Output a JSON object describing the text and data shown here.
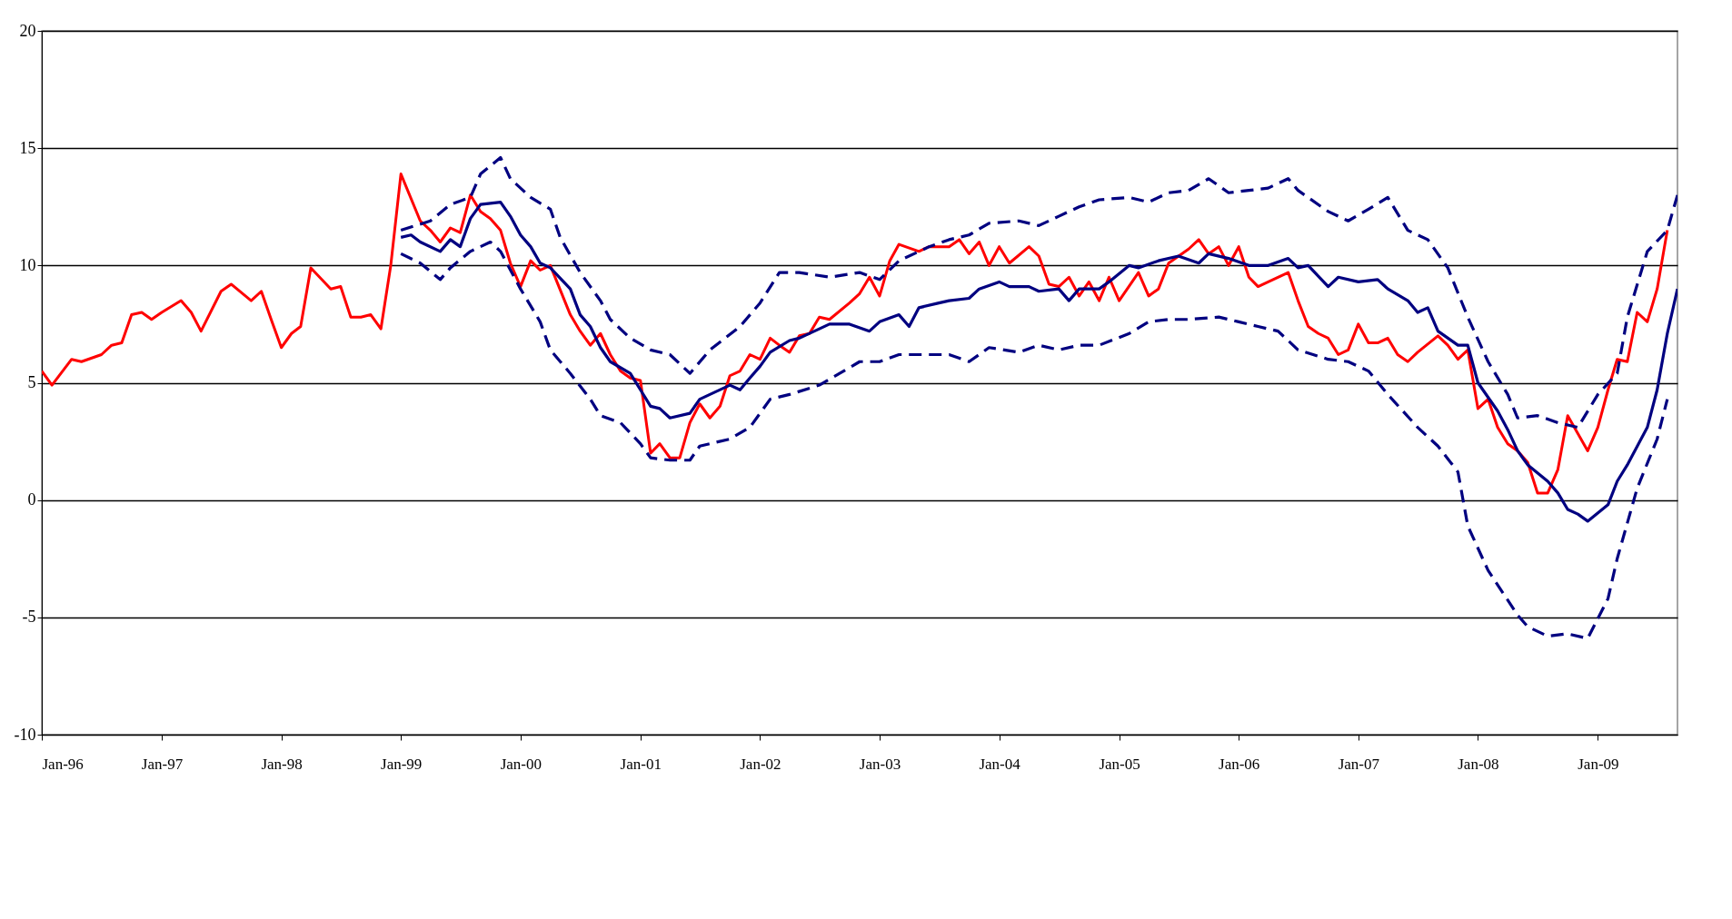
{
  "chart_data": {
    "type": "line",
    "xlim": [
      "1996-01",
      "2009-09"
    ],
    "ylim": [
      -10,
      20
    ],
    "xticks": [
      {
        "value": "1996-01",
        "label": "Jan-96"
      },
      {
        "value": "1997-01",
        "label": "Jan-97"
      },
      {
        "value": "1998-01",
        "label": "Jan-98"
      },
      {
        "value": "1999-01",
        "label": "Jan-99"
      },
      {
        "value": "2000-01",
        "label": "Jan-00"
      },
      {
        "value": "2001-01",
        "label": "Jan-01"
      },
      {
        "value": "2002-01",
        "label": "Jan-02"
      },
      {
        "value": "2003-01",
        "label": "Jan-03"
      },
      {
        "value": "2004-01",
        "label": "Jan-04"
      },
      {
        "value": "2005-01",
        "label": "Jan-05"
      },
      {
        "value": "2006-01",
        "label": "Jan-06"
      },
      {
        "value": "2007-01",
        "label": "Jan-07"
      },
      {
        "value": "2008-01",
        "label": "Jan-08"
      },
      {
        "value": "2009-01",
        "label": "Jan-09"
      }
    ],
    "yticks": [
      -10,
      -5,
      0,
      5,
      10,
      15,
      20
    ],
    "grid": "y",
    "marker": "none",
    "series": [
      {
        "color": "#ff0000",
        "line_style": "solid",
        "x": [
          "1996-01",
          "1996-02",
          "1996-04",
          "1996-05",
          "1996-07",
          "1996-08",
          "1996-09",
          "1996-10",
          "1996-11",
          "1996-12",
          "1997-01",
          "1997-03",
          "1997-04",
          "1997-05",
          "1997-07",
          "1997-08",
          "1997-10",
          "1997-11",
          "1997-12",
          "1998-01",
          "1998-02",
          "1998-03",
          "1998-04",
          "1998-06",
          "1998-07",
          "1998-08",
          "1998-09",
          "1998-10",
          "1998-11",
          "1998-12",
          "1999-01",
          "1999-03",
          "1999-04",
          "1999-05",
          "1999-06",
          "1999-07",
          "1999-08",
          "1999-09",
          "1999-10",
          "1999-11",
          "1999-12",
          "2000-01",
          "2000-02",
          "2000-03",
          "2000-04",
          "2000-06",
          "2000-07",
          "2000-08",
          "2000-09",
          "2000-10",
          "2000-11",
          "2000-12",
          "2001-01",
          "2001-02",
          "2001-03",
          "2001-04",
          "2001-05",
          "2001-06",
          "2001-07",
          "2001-08",
          "2001-09",
          "2001-10",
          "2001-11",
          "2001-12",
          "2002-01",
          "2002-02",
          "2002-03",
          "2002-04",
          "2002-05",
          "2002-06",
          "2002-07",
          "2002-08",
          "2002-10",
          "2002-11",
          "2002-12",
          "2003-01",
          "2003-02",
          "2003-03",
          "2003-05",
          "2003-06",
          "2003-08",
          "2003-09",
          "2003-10",
          "2003-11",
          "2003-12",
          "2004-01",
          "2004-02",
          "2004-04",
          "2004-05",
          "2004-06",
          "2004-07",
          "2004-08",
          "2004-09",
          "2004-10",
          "2004-11",
          "2004-12",
          "2005-01",
          "2005-03",
          "2005-04",
          "2005-05",
          "2005-06",
          "2005-08",
          "2005-09",
          "2005-10",
          "2005-11",
          "2005-12",
          "2006-01",
          "2006-02",
          "2006-03",
          "2006-04",
          "2006-06",
          "2006-07",
          "2006-08",
          "2006-09",
          "2006-10",
          "2006-11",
          "2006-12",
          "2007-01",
          "2007-02",
          "2007-03",
          "2007-04",
          "2007-05",
          "2007-06",
          "2007-07",
          "2007-09",
          "2007-10",
          "2007-11",
          "2007-12",
          "2008-01",
          "2008-02",
          "2008-03",
          "2008-04",
          "2008-05",
          "2008-06",
          "2008-07",
          "2008-08",
          "2008-09",
          "2008-10",
          "2008-12",
          "2009-01",
          "2009-02",
          "2009-03",
          "2009-04",
          "2009-05",
          "2009-06",
          "2009-07",
          "2009-08"
        ],
        "values": [
          5.5,
          4.9,
          6.0,
          5.9,
          6.2,
          6.6,
          6.7,
          7.9,
          8.0,
          7.7,
          8.0,
          8.5,
          8.0,
          7.2,
          8.9,
          9.2,
          8.5,
          8.9,
          7.7,
          6.5,
          7.1,
          7.4,
          9.9,
          9.0,
          9.1,
          7.8,
          7.8,
          7.9,
          7.3,
          10.0,
          13.9,
          11.9,
          11.5,
          11.0,
          11.6,
          11.4,
          13.0,
          12.3,
          12.0,
          11.5,
          10.1,
          9.1,
          10.2,
          9.8,
          10.0,
          7.9,
          7.2,
          6.6,
          7.1,
          6.2,
          5.5,
          5.2,
          5.1,
          2.0,
          2.4,
          1.8,
          1.8,
          3.3,
          4.1,
          3.5,
          4.0,
          5.3,
          5.5,
          6.2,
          6.0,
          6.9,
          6.6,
          6.3,
          7.0,
          7.1,
          7.8,
          7.7,
          8.4,
          8.8,
          9.5,
          8.7,
          10.2,
          10.9,
          10.6,
          10.8,
          10.8,
          11.1,
          10.5,
          11.0,
          10.0,
          10.8,
          10.1,
          10.8,
          10.4,
          9.2,
          9.1,
          9.5,
          8.7,
          9.3,
          8.5,
          9.5,
          8.5,
          9.7,
          8.7,
          9.0,
          10.1,
          10.7,
          11.1,
          10.5,
          10.8,
          10.0,
          10.8,
          9.5,
          9.1,
          9.3,
          9.7,
          8.5,
          7.4,
          7.1,
          6.9,
          6.2,
          6.4,
          7.5,
          6.7,
          6.7,
          6.9,
          6.2,
          5.9,
          6.3,
          7.0,
          6.6,
          6.0,
          6.4,
          3.9,
          4.3,
          3.1,
          2.4,
          2.1,
          1.6,
          0.3,
          0.3,
          1.3,
          3.6,
          2.1,
          3.1,
          4.7,
          6.0,
          5.9,
          8.0,
          7.6,
          9.0,
          11.5
        ]
      },
      {
        "color": "#000080",
        "line_style": "solid",
        "x": [
          "1999-01",
          "1999-02",
          "1999-03",
          "1999-05",
          "1999-06",
          "1999-07",
          "1999-08",
          "1999-09",
          "1999-11",
          "1999-12",
          "2000-01",
          "2000-02",
          "2000-03",
          "2000-04",
          "2000-06",
          "2000-07",
          "2000-08",
          "2000-09",
          "2000-10",
          "2000-12",
          "2001-01",
          "2001-02",
          "2001-03",
          "2001-04",
          "2001-06",
          "2001-07",
          "2001-08",
          "2001-10",
          "2001-11",
          "2001-12",
          "2002-01",
          "2002-02",
          "2002-04",
          "2002-05",
          "2002-07",
          "2002-08",
          "2002-10",
          "2002-12",
          "2003-01",
          "2003-03",
          "2003-04",
          "2003-05",
          "2003-07",
          "2003-08",
          "2003-10",
          "2003-11",
          "2004-01",
          "2004-02",
          "2004-04",
          "2004-05",
          "2004-07",
          "2004-08",
          "2004-09",
          "2004-11",
          "2004-12",
          "2005-02",
          "2005-03",
          "2005-05",
          "2005-07",
          "2005-09",
          "2005-10",
          "2005-12",
          "2006-02",
          "2006-04",
          "2006-06",
          "2006-07",
          "2006-08",
          "2006-10",
          "2006-11",
          "2007-01",
          "2007-03",
          "2007-04",
          "2007-06",
          "2007-07",
          "2007-08",
          "2007-09",
          "2007-11",
          "2007-12",
          "2008-01",
          "2008-03",
          "2008-04",
          "2008-05",
          "2008-06",
          "2008-08",
          "2008-09",
          "2008-10",
          "2008-11",
          "2008-12",
          "2009-02",
          "2009-03",
          "2009-04",
          "2009-06",
          "2009-07",
          "2009-08",
          "2009-09"
        ],
        "values": [
          11.2,
          11.3,
          11.0,
          10.6,
          11.1,
          10.8,
          12.0,
          12.6,
          12.7,
          12.1,
          11.3,
          10.8,
          10.1,
          9.9,
          9.0,
          7.9,
          7.4,
          6.5,
          5.9,
          5.4,
          4.7,
          4.0,
          3.9,
          3.5,
          3.7,
          4.3,
          4.5,
          4.9,
          4.7,
          5.2,
          5.7,
          6.3,
          6.8,
          6.9,
          7.3,
          7.5,
          7.5,
          7.2,
          7.6,
          7.9,
          7.4,
          8.2,
          8.4,
          8.5,
          8.6,
          9.0,
          9.3,
          9.1,
          9.1,
          8.9,
          9.0,
          8.5,
          9.0,
          9.0,
          9.3,
          10.0,
          9.9,
          10.2,
          10.4,
          10.1,
          10.5,
          10.3,
          10.0,
          10.0,
          10.3,
          9.9,
          10.0,
          9.1,
          9.5,
          9.3,
          9.4,
          9.0,
          8.5,
          8.0,
          8.2,
          7.2,
          6.6,
          6.6,
          5.0,
          3.8,
          3.0,
          2.1,
          1.5,
          0.8,
          0.3,
          -0.4,
          -0.6,
          -0.9,
          -0.2,
          0.8,
          1.5,
          3.1,
          4.7,
          7.1,
          9.0
        ]
      },
      {
        "color": "#000080",
        "line_style": "dashed",
        "x": [
          "1999-01",
          "1999-04",
          "1999-06",
          "1999-08",
          "1999-09",
          "1999-11",
          "1999-12",
          "2000-02",
          "2000-04",
          "2000-05",
          "2000-07",
          "2000-09",
          "2000-10",
          "2000-12",
          "2001-02",
          "2001-04",
          "2001-06",
          "2001-08",
          "2001-11",
          "2002-01",
          "2002-03",
          "2002-05",
          "2002-08",
          "2002-11",
          "2003-01",
          "2003-03",
          "2003-06",
          "2003-08",
          "2003-10",
          "2003-12",
          "2004-03",
          "2004-05",
          "2004-07",
          "2004-09",
          "2004-11",
          "2005-02",
          "2005-04",
          "2005-06",
          "2005-08",
          "2005-10",
          "2005-12",
          "2006-02",
          "2006-04",
          "2006-06",
          "2006-07",
          "2006-10",
          "2006-12",
          "2007-02",
          "2007-04",
          "2007-06",
          "2007-08",
          "2007-10",
          "2007-12",
          "2008-02",
          "2008-04",
          "2008-05",
          "2008-07",
          "2008-09",
          "2008-11",
          "2009-01",
          "2009-03",
          "2009-04",
          "2009-06",
          "2009-08",
          "2009-09"
        ],
        "values": [
          11.5,
          11.9,
          12.6,
          12.9,
          13.9,
          14.6,
          13.7,
          12.9,
          12.4,
          11.2,
          9.7,
          8.5,
          7.7,
          6.9,
          6.4,
          6.2,
          5.4,
          6.4,
          7.4,
          8.4,
          9.7,
          9.7,
          9.5,
          9.7,
          9.4,
          10.2,
          10.8,
          11.1,
          11.3,
          11.8,
          11.9,
          11.7,
          12.1,
          12.5,
          12.8,
          12.9,
          12.7,
          13.1,
          13.2,
          13.7,
          13.1,
          13.2,
          13.3,
          13.7,
          13.2,
          12.3,
          11.9,
          12.4,
          12.9,
          11.5,
          11.1,
          9.9,
          7.8,
          5.9,
          4.5,
          3.5,
          3.6,
          3.3,
          3.1,
          4.5,
          5.4,
          7.8,
          10.6,
          11.5,
          13.0
        ]
      },
      {
        "color": "#000080",
        "line_style": "dashed",
        "x": [
          "1999-01",
          "1999-03",
          "1999-05",
          "1999-06",
          "1999-08",
          "1999-10",
          "1999-11",
          "2000-01",
          "2000-03",
          "2000-04",
          "2000-06",
          "2000-08",
          "2000-09",
          "2000-11",
          "2001-01",
          "2001-02",
          "2001-04",
          "2001-06",
          "2001-07",
          "2001-10",
          "2001-12",
          "2002-02",
          "2002-04",
          "2002-07",
          "2002-09",
          "2002-11",
          "2003-01",
          "2003-03",
          "2003-06",
          "2003-08",
          "2003-10",
          "2003-12",
          "2004-03",
          "2004-05",
          "2004-07",
          "2004-09",
          "2004-11",
          "2005-02",
          "2005-04",
          "2005-06",
          "2005-08",
          "2005-11",
          "2006-01",
          "2006-03",
          "2006-05",
          "2006-07",
          "2006-10",
          "2006-12",
          "2007-02",
          "2007-04",
          "2007-07",
          "2007-09",
          "2007-11",
          "2007-12",
          "2008-02",
          "2008-05",
          "2008-06",
          "2008-08",
          "2008-10",
          "2008-12",
          "2009-02",
          "2009-03",
          "2009-05",
          "2009-07",
          "2009-08"
        ],
        "values": [
          10.5,
          10.1,
          9.4,
          9.9,
          10.6,
          11.0,
          10.6,
          9.0,
          7.6,
          6.4,
          5.4,
          4.3,
          3.6,
          3.3,
          2.4,
          1.8,
          1.7,
          1.7,
          2.3,
          2.6,
          3.1,
          4.3,
          4.5,
          4.9,
          5.4,
          5.9,
          5.9,
          6.2,
          6.2,
          6.2,
          5.9,
          6.5,
          6.3,
          6.6,
          6.4,
          6.6,
          6.6,
          7.1,
          7.6,
          7.7,
          7.7,
          7.8,
          7.6,
          7.4,
          7.2,
          6.4,
          6.0,
          5.9,
          5.5,
          4.5,
          3.1,
          2.3,
          1.2,
          -1.1,
          -3.0,
          -4.9,
          -5.4,
          -5.8,
          -5.7,
          -5.9,
          -4.2,
          -2.5,
          0.5,
          2.6,
          4.3
        ]
      }
    ]
  }
}
